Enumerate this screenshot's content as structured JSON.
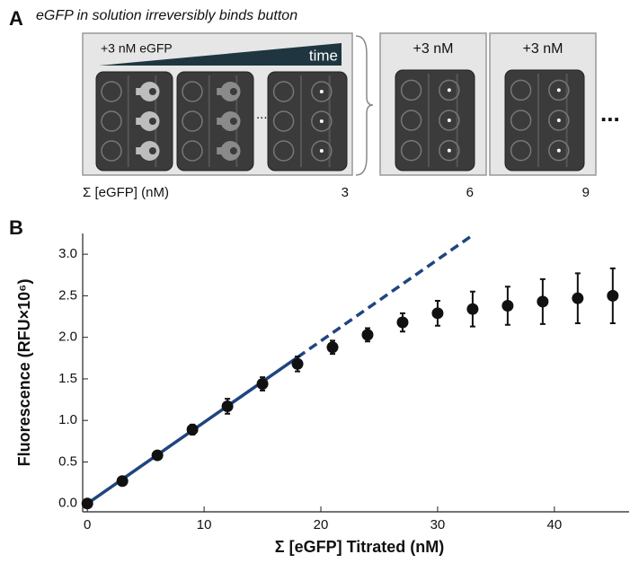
{
  "panel_a": {
    "label": "A",
    "caption": "eGFP in solution irreversibly binds button",
    "boxes": [
      {
        "header": "+3 nM eGFP",
        "time_label": "time",
        "ellipsis": "...",
        "total": "3"
      },
      {
        "header": "+3 nM",
        "total": "6"
      },
      {
        "header": "+3 nM",
        "total": "9"
      }
    ],
    "sum_label": "Σ [eGFP] (nM)",
    "trailing": "..."
  },
  "chart_data": {
    "type": "scatter",
    "panel_label": "B",
    "x_label": "Σ [eGFP] Titrated (nM)",
    "y_label": "Fluorescence (RFU×10⁶)",
    "x": [
      0,
      3,
      6,
      9,
      12,
      15,
      18,
      21,
      24,
      27,
      30,
      33,
      36,
      39,
      42,
      45
    ],
    "series": [
      {
        "color": "#111111",
        "values": [
          0,
          0.27,
          0.58,
          0.89,
          1.17,
          1.44,
          1.68,
          1.88,
          2.03,
          2.18,
          2.29,
          2.34,
          2.38,
          2.43,
          2.47,
          2.5
        ],
        "errors": [
          0.02,
          0.03,
          0.03,
          0.06,
          0.09,
          0.08,
          0.09,
          0.08,
          0.08,
          0.11,
          0.15,
          0.21,
          0.23,
          0.27,
          0.3,
          0.33
        ]
      }
    ],
    "fit_lines": [
      {
        "x": [
          -0.4,
          18
        ],
        "y": [
          -0.04,
          1.76
        ],
        "dashed": false,
        "color": "#1f4580"
      },
      {
        "x": [
          18,
          33
        ],
        "y": [
          1.76,
          3.23
        ],
        "dashed": true,
        "color": "#1f4580"
      }
    ],
    "xlim": [
      -0.4,
      46.4
    ],
    "ylim": [
      -0.1,
      3.25
    ],
    "xticks": [
      0,
      10,
      20,
      30,
      40
    ],
    "yticks": [
      {
        "value": 0,
        "label": "0.0"
      },
      0.5,
      {
        "value": 1,
        "label": "1.0"
      },
      1.5,
      {
        "value": 2,
        "label": "2.0"
      },
      2.5,
      {
        "value": 3,
        "label": "3.0"
      }
    ]
  }
}
